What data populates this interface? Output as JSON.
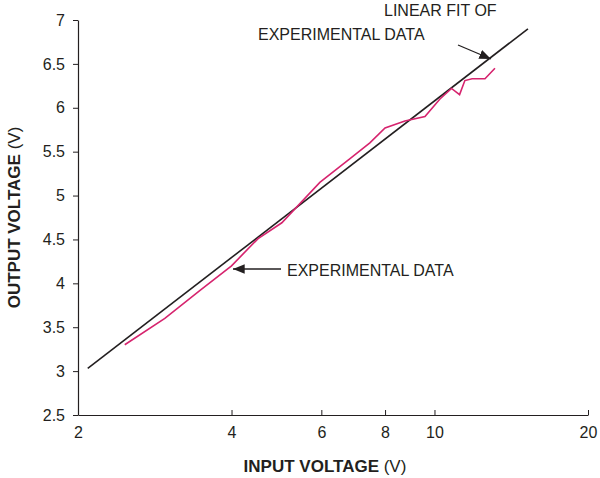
{
  "chart_data": {
    "type": "line",
    "log": "x",
    "x_label": "INPUT VOLTAGE (V)",
    "y_label": "OUTPUT VOLTAGE (V)",
    "xlim": [
      2,
      20
    ],
    "xticks": [
      2,
      4,
      6,
      8,
      10,
      20
    ],
    "ylim": [
      2.5,
      7
    ],
    "yticks": [
      2.5,
      3,
      3.5,
      4,
      4.5,
      5,
      5.5,
      6,
      6.5,
      7
    ],
    "grid": false,
    "annotations": [
      {
        "lines": [
          "LINEAR FIT OF",
          "EXPERIMENTAL DATA"
        ]
      },
      {
        "lines": [
          "EXPERIMENTAL DATA"
        ]
      }
    ],
    "series": [
      {
        "color": "#231f20",
        "line_style": "solid",
        "x": [
          2.09,
          15.25
        ],
        "values": [
          3.03,
          6.9
        ]
      },
      {
        "color": "#d6246e",
        "line_style": "solid",
        "x": [
          2.47,
          2.96,
          3.47,
          4.0,
          4.51,
          5.02,
          5.96,
          6.83,
          7.47,
          8.0,
          8.75,
          9.58,
          10.25,
          10.8,
          11.2,
          11.47,
          11.85,
          12.56,
          13.14
        ],
        "values": [
          3.3,
          3.6,
          3.92,
          4.2,
          4.51,
          4.69,
          5.15,
          5.42,
          5.6,
          5.77,
          5.85,
          5.9,
          6.1,
          6.22,
          6.15,
          6.31,
          6.33,
          6.33,
          6.45
        ]
      }
    ]
  }
}
